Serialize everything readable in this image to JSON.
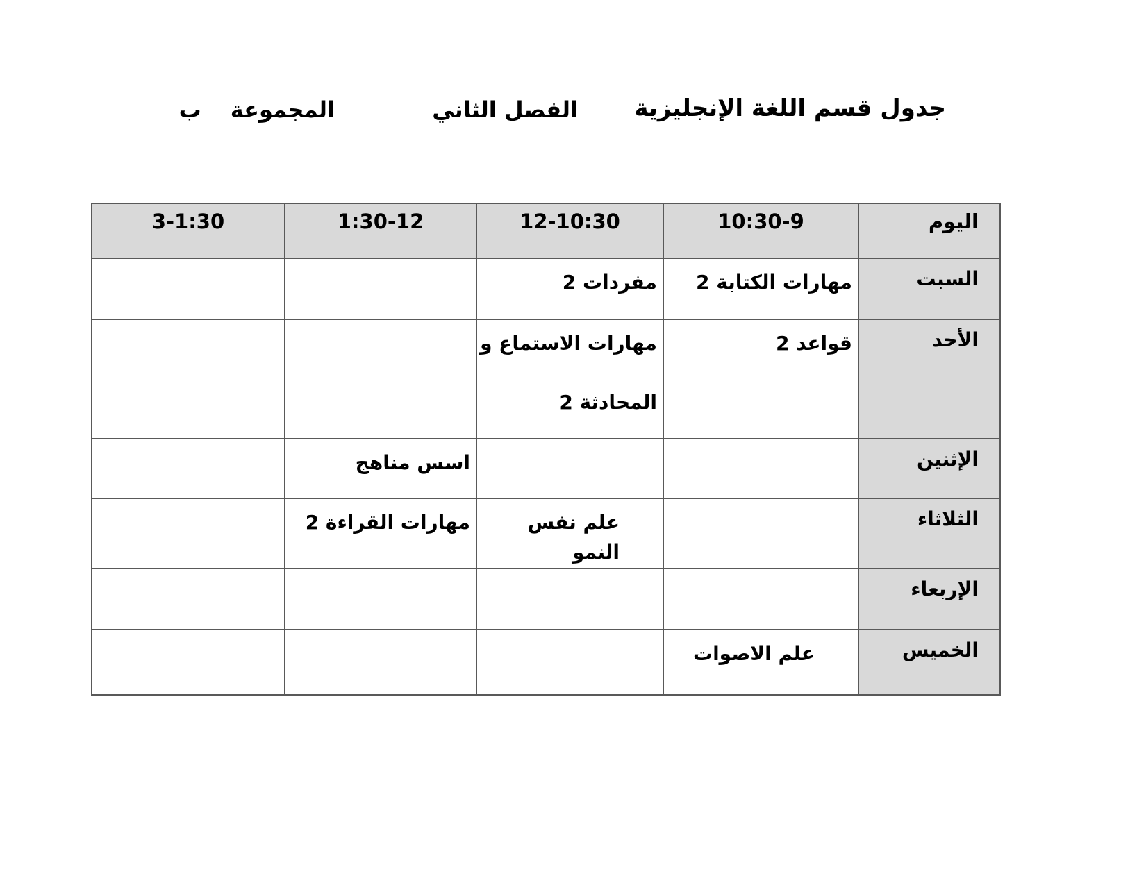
{
  "page_header": {
    "title": "جدول قسم اللغة الإنجليزية",
    "semester": "الفصل الثاني",
    "group_label": "المجموعة",
    "group_value": "ب"
  },
  "schedule_table": {
    "columns": [
      "اليوم",
      "10:30-9",
      "12-10:30",
      "1:30-12",
      "3-1:30"
    ],
    "rows": [
      {
        "day": "السبت",
        "slots": [
          "مهارات الكتابة 2",
          "مفردات 2",
          "",
          ""
        ]
      },
      {
        "day": "الأحد",
        "slots": [
          "قواعد 2",
          "مهارات الاستماع و\nالمحادثة 2",
          "",
          ""
        ]
      },
      {
        "day": "الإثنين",
        "slots": [
          "",
          "",
          "اسس مناهج",
          ""
        ]
      },
      {
        "day": "الثلاثاء",
        "slots": [
          "",
          "علم نفس النمو",
          "مهارات القراءة 2",
          ""
        ]
      },
      {
        "day": "الإربعاء",
        "slots": [
          "",
          "",
          "",
          ""
        ]
      },
      {
        "day": "الخميس",
        "slots": [
          "علم الاصوات",
          "",
          "",
          ""
        ]
      }
    ],
    "colors": {
      "header_bg": "#d9d9d9",
      "grid_border": "#595959",
      "text": "#000000"
    }
  }
}
